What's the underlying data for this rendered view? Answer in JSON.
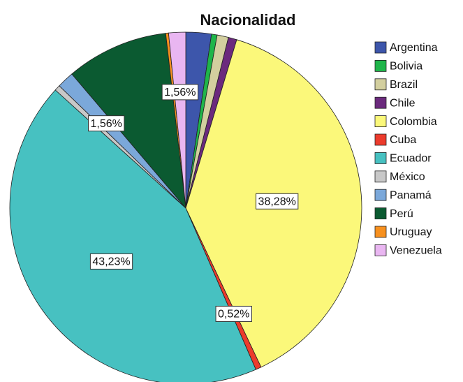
{
  "chart_data": {
    "type": "pie",
    "title": "Nacionalidad",
    "categories": [
      "Argentina",
      "Bolivia",
      "Brazil",
      "Chile",
      "Colombia",
      "Cuba",
      "Ecuador",
      "México",
      "Panamá",
      "Perú",
      "Uruguay",
      "Venezuela"
    ],
    "values": [
      2.34,
      0.52,
      1.04,
      0.78,
      38.28,
      0.52,
      43.23,
      0.52,
      1.56,
      9.39,
      0.26,
      1.56
    ],
    "value_labels": [
      null,
      null,
      null,
      null,
      "38,28%",
      "0,52%",
      "43,23%",
      null,
      "1,56%",
      null,
      null,
      "1,56%"
    ],
    "colors": [
      "#3d56ab",
      "#1fb54a",
      "#d3cf9f",
      "#6b2a7d",
      "#fbf87a",
      "#ec3b2c",
      "#47c1c1",
      "#c8c8c8",
      "#7ba8da",
      "#0b5a31",
      "#f7901e",
      "#e9b6f1"
    ],
    "legend": "right"
  }
}
